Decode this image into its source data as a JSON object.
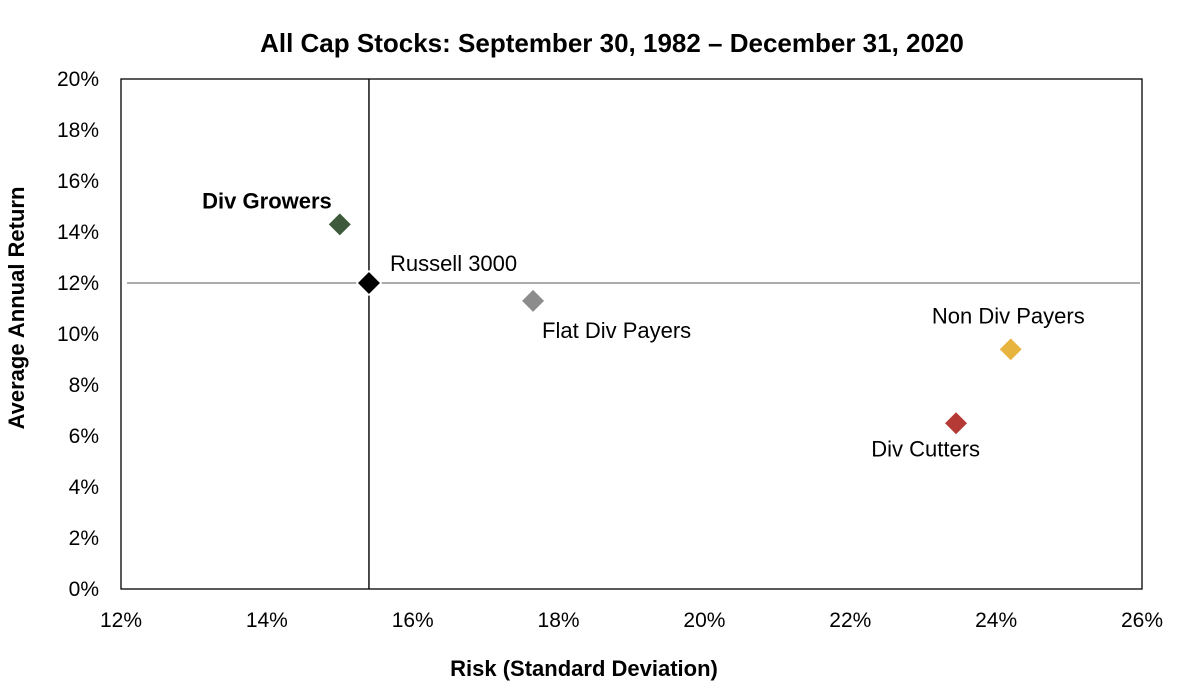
{
  "chart_data": {
    "type": "scatter",
    "title": "All Cap Stocks: September 30, 1982 – December 31, 2020",
    "xlabel": "Risk (Standard Deviation)",
    "ylabel": "Average Annual Return",
    "xlim": [
      12,
      26
    ],
    "ylim": [
      0,
      20
    ],
    "x_ticks": [
      "12%",
      "14%",
      "16%",
      "18%",
      "20%",
      "22%",
      "24%",
      "26%"
    ],
    "y_ticks": [
      "0%",
      "2%",
      "4%",
      "6%",
      "8%",
      "10%",
      "12%",
      "14%",
      "16%",
      "18%",
      "20%"
    ],
    "grid": false,
    "legend": "none",
    "reference_lines": {
      "x": 15.4,
      "y": 12.0
    },
    "points": [
      {
        "label": "Div Growers",
        "x": 15.0,
        "y": 14.3,
        "color": "#3d5a3c",
        "bold": true,
        "label_pos": "upper-left"
      },
      {
        "label": "Russell 3000",
        "x": 15.4,
        "y": 12.0,
        "color": "#000000",
        "bold": false,
        "label_pos": "upper-right"
      },
      {
        "label": "Flat Div Payers",
        "x": 17.65,
        "y": 11.3,
        "color": "#8c8c8c",
        "bold": false,
        "label_pos": "lower-right"
      },
      {
        "label": "Non Div Payers",
        "x": 24.2,
        "y": 9.4,
        "color": "#e8b440",
        "bold": false,
        "label_pos": "upper-left"
      },
      {
        "label": "Div Cutters",
        "x": 23.45,
        "y": 6.5,
        "color": "#b53a35",
        "bold": false,
        "label_pos": "lower-left"
      }
    ]
  }
}
